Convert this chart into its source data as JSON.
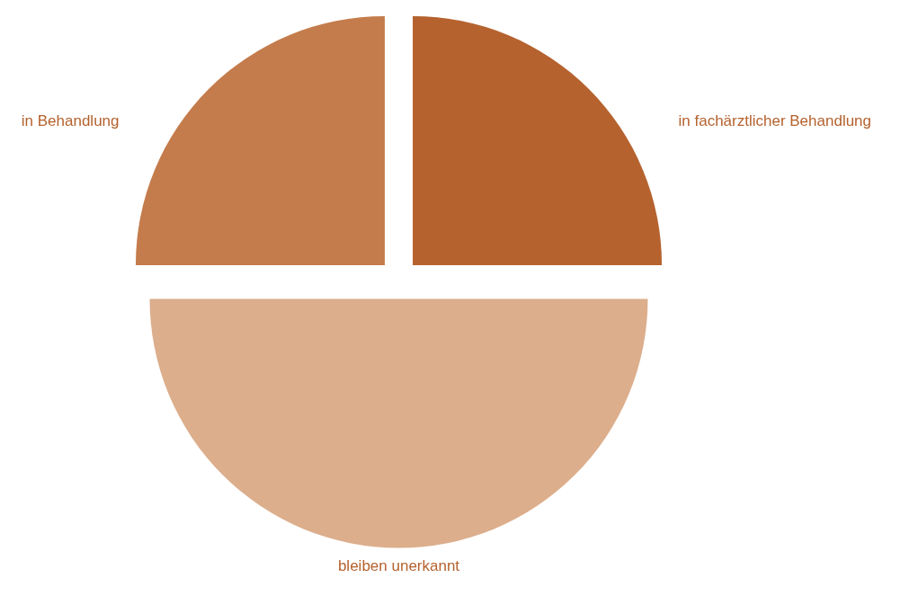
{
  "chart_data": {
    "type": "pie",
    "categories": [
      "in fachärztlicher Behandlung",
      "bleiben unerkannt",
      "in Behandlung"
    ],
    "values": [
      25,
      50,
      25
    ],
    "colors": [
      "#b5622e",
      "#dcae8c",
      "#c47c4c"
    ]
  }
}
